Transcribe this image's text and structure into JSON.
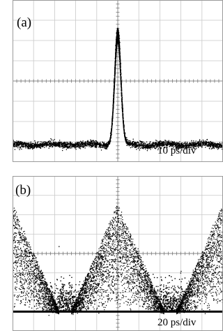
{
  "chart_data": [
    {
      "type": "scatter",
      "panel_label": "(a)",
      "scale_label": "10 ps/div",
      "grid": "10 x 8 divisions",
      "x_unit": "ps",
      "x_per_div": 10,
      "xlim": [
        -50,
        50
      ],
      "ylim_div": [
        0,
        8
      ],
      "trace": {
        "baseline_div": 0.85,
        "peak_center_ps": 0,
        "peak_height_div": 5.65,
        "peak_fwhm_ps": 3.5,
        "noise_div": 0.08
      }
    },
    {
      "type": "scatter",
      "panel_label": "(b)",
      "scale_label": "20 ps/div",
      "grid": "10 x 8 divisions",
      "x_unit": "ps",
      "x_per_div": 20,
      "xlim": [
        -100,
        100
      ],
      "ylim_div": [
        0,
        8
      ],
      "trace": {
        "baseline_div": 1.15,
        "peak_centers_ps": [
          -100,
          0,
          100
        ],
        "peak_height_div": 6.5,
        "half_base_ps": 44,
        "floor_div": 1.0
      }
    }
  ]
}
